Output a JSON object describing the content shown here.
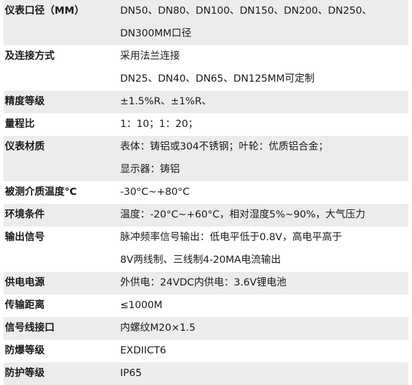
{
  "rows": [
    {
      "label": "仪表口径（MM）",
      "lines": [
        "DN50、DN80、DN100、DN150、DN200、DN250、",
        "DN300MM口径"
      ]
    },
    {
      "label": "及连接方式",
      "lines": [
        "采用法兰连接",
        "DN25、DN40、DN65、DN125MM可定制"
      ]
    },
    {
      "label": "精度等级",
      "lines": [
        "±1.5%R、±1%R、"
      ]
    },
    {
      "label": "量程比",
      "lines": [
        "1：10；1：20；"
      ]
    },
    {
      "label": "仪表材质",
      "lines": [
        "表体：铸铝或304不锈钢；叶轮：优质铝合金；",
        "显示器：铸铝"
      ]
    },
    {
      "label": "被测介质温度°C",
      "lines": [
        "-30°C~+80°C"
      ]
    },
    {
      "label": "环境条件",
      "lines": [
        "温度：-20°C~+60°C，相对湿度5%~90%，大气压力"
      ]
    },
    {
      "label": "输出信号",
      "lines": [
        "脉冲频率信号输出：低电平低于0.8V，高电平高于",
        "8V两线制、三线制4-20MA电流输出"
      ]
    },
    {
      "label": "供电电源",
      "lines": [
        "外供电：24VDC内供电：3.6V锂电池"
      ]
    },
    {
      "label": "传输距离",
      "lines": [
        "≤1000M"
      ]
    },
    {
      "label": "信号线接口",
      "lines": [
        "内螺纹M20×1.5"
      ]
    },
    {
      "label": "防爆等级",
      "lines": [
        "EXDIICT6"
      ]
    },
    {
      "label": "防护等级",
      "lines": [
        "IP65"
      ]
    }
  ],
  "colors": {
    "row_alt": "#ececec",
    "text": "#1a1a1a"
  }
}
